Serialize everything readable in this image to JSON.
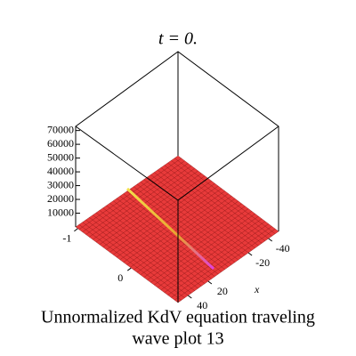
{
  "chart_data": {
    "type": "surface3d",
    "title": "t = 0.",
    "caption": [
      "Unnormalized KdV equation  traveling",
      "wave plot 13"
    ],
    "x_label": "x",
    "zlim": [
      0,
      73000
    ],
    "zticks": [
      10000,
      20000,
      30000,
      40000,
      50000,
      60000,
      70000
    ],
    "xlim": [
      50,
      -50
    ],
    "xticks": [
      40,
      20,
      -20,
      -40
    ],
    "ylim": [
      -1.04,
      0.88
    ],
    "yticks": [
      -1,
      0
    ],
    "color": "#e83a3a"
  }
}
